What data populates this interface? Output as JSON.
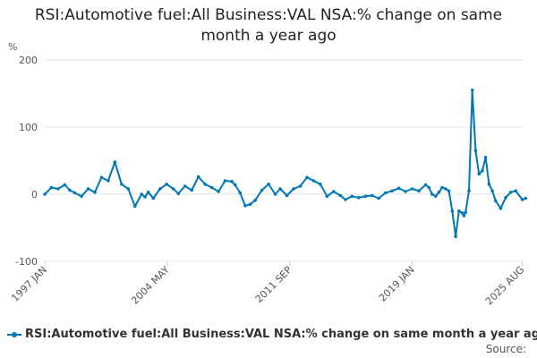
{
  "chart_data": {
    "type": "line",
    "title": "RSI:Automotive fuel:All Business:VAL NSA:% change on same month a year ago",
    "ylabel": "%",
    "ylim": [
      -100,
      200
    ],
    "yticks": [
      -100,
      0,
      100,
      200
    ],
    "xticks": [
      "1997 JAN",
      "2004 MAY",
      "2011 SEP",
      "2019 JAN",
      "2025 AUG"
    ],
    "grid": true,
    "legend_position": "bottom",
    "color": "#0077b6",
    "series": [
      {
        "name": "RSI:Automotive fuel:All Business:VAL NSA:% change on same month a year ago",
        "x": [
          1997.0,
          1997.4,
          1997.8,
          1998.2,
          1998.5,
          1998.8,
          1999.2,
          1999.6,
          2000.0,
          2000.4,
          2000.8,
          2001.2,
          2001.6,
          2002.0,
          2002.4,
          2002.8,
          2003.0,
          2003.2,
          2003.5,
          2003.9,
          2004.3,
          2004.7,
          2005.0,
          2005.4,
          2005.8,
          2006.2,
          2006.6,
          2007.0,
          2007.4,
          2007.8,
          2008.2,
          2008.4,
          2008.7,
          2009.0,
          2009.3,
          2009.6,
          2010.0,
          2010.4,
          2010.8,
          2011.1,
          2011.5,
          2011.9,
          2012.3,
          2012.7,
          2013.1,
          2013.5,
          2013.9,
          2014.3,
          2014.7,
          2015.0,
          2015.4,
          2015.8,
          2016.2,
          2016.6,
          2017.0,
          2017.4,
          2017.8,
          2018.2,
          2018.6,
          2019.0,
          2019.4,
          2019.8,
          2020.0,
          2020.2,
          2020.4,
          2020.6,
          2020.8,
          2021.0,
          2021.2,
          2021.4,
          2021.6,
          2021.8,
          2022.0,
          2022.1,
          2022.2,
          2022.4,
          2022.6,
          2022.8,
          2023.0,
          2023.2,
          2023.4,
          2023.6,
          2023.8,
          2024.0,
          2024.3,
          2024.6,
          2024.9,
          2025.2,
          2025.6,
          2025.8
        ],
        "values": [
          0,
          10,
          8,
          14,
          6,
          2,
          -3,
          8,
          3,
          25,
          20,
          48,
          15,
          8,
          -18,
          0,
          -4,
          3,
          -6,
          8,
          15,
          8,
          1,
          12,
          6,
          26,
          15,
          10,
          4,
          20,
          19,
          14,
          2,
          -17,
          -15,
          -9,
          6,
          15,
          0,
          8,
          -2,
          8,
          12,
          25,
          20,
          15,
          -3,
          4,
          -2,
          -8,
          -3,
          -5,
          -3,
          -2,
          -6,
          2,
          5,
          9,
          4,
          8,
          5,
          14,
          10,
          0,
          -3,
          3,
          10,
          8,
          5,
          -25,
          -63,
          -25,
          -28,
          -32,
          -27,
          5,
          155,
          65,
          30,
          35,
          55,
          15,
          5,
          -10,
          -21,
          -5,
          3,
          5,
          -8,
          -6
        ]
      }
    ]
  }
}
